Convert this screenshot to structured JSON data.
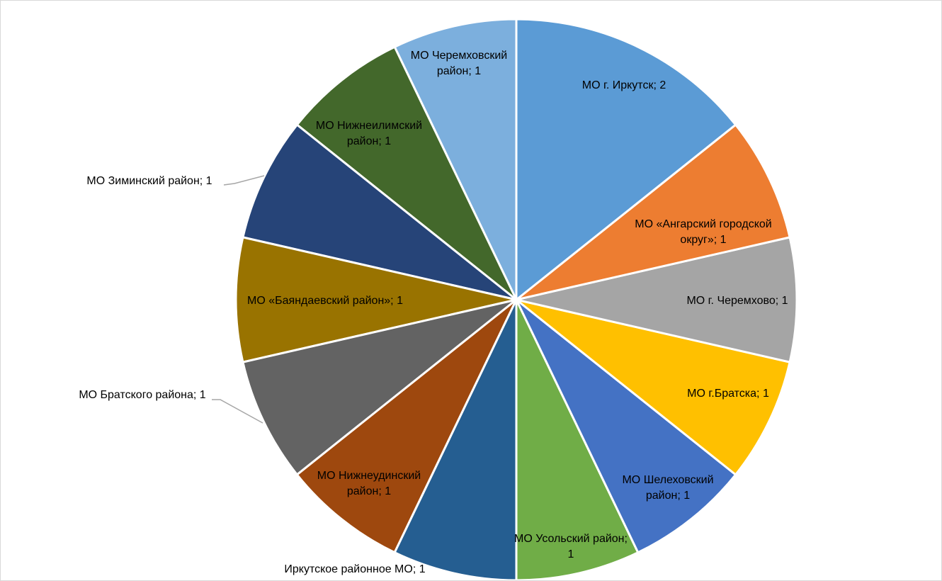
{
  "chart_data": {
    "type": "pie",
    "values": [
      2,
      1,
      1,
      1,
      1,
      1,
      1,
      1,
      1,
      1,
      1,
      1,
      1
    ],
    "value_labels": [
      "МО г. Иркутск; 2",
      "МО «Ангарский городской округ»; 1",
      "МО г. Черемхово; 1",
      "МО г.Братска; 1",
      "МО Шелеховский район; 1",
      "МО Усольский район; 1",
      "Иркутское районное МО; 1",
      "МО Нижнеудинский район; 1",
      "МО Братского района; 1",
      "МО «Баяндаевский район»; 1",
      "МО Зиминский район; 1",
      "МО Нижнеилимский район; 1",
      "МО Черемховский район; 1"
    ],
    "colors": [
      "#5b9bd5",
      "#ed7d31",
      "#a5a5a5",
      "#ffc000",
      "#4472c4",
      "#70ad47",
      "#255e91",
      "#9e480e",
      "#636363",
      "#997300",
      "#264478",
      "#43682b",
      "#7cafdd"
    ]
  }
}
